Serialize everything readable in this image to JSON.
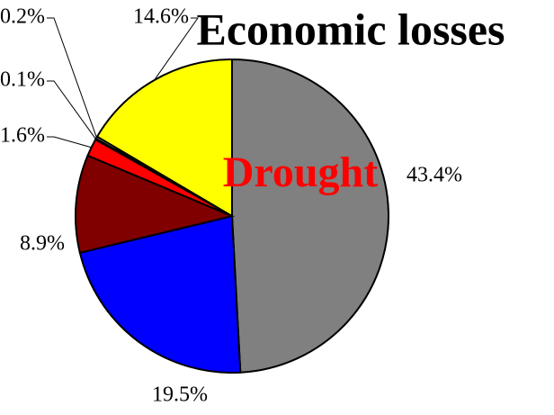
{
  "chart_data": {
    "type": "pie",
    "title": "Economic losses",
    "annotation": "Drought",
    "values": [
      43.4,
      19.5,
      8.9,
      1.6,
      0.1,
      0.2,
      14.6
    ],
    "value_labels": [
      "43.4%",
      "19.5%",
      "8.9%",
      "1.6%",
      "0.1%",
      "0.2%",
      "14.6%"
    ],
    "colors": [
      "#808080",
      "#0000ff",
      "#800000",
      "#ff0000",
      "#000000",
      "#ffffff",
      "#ffff00"
    ]
  }
}
